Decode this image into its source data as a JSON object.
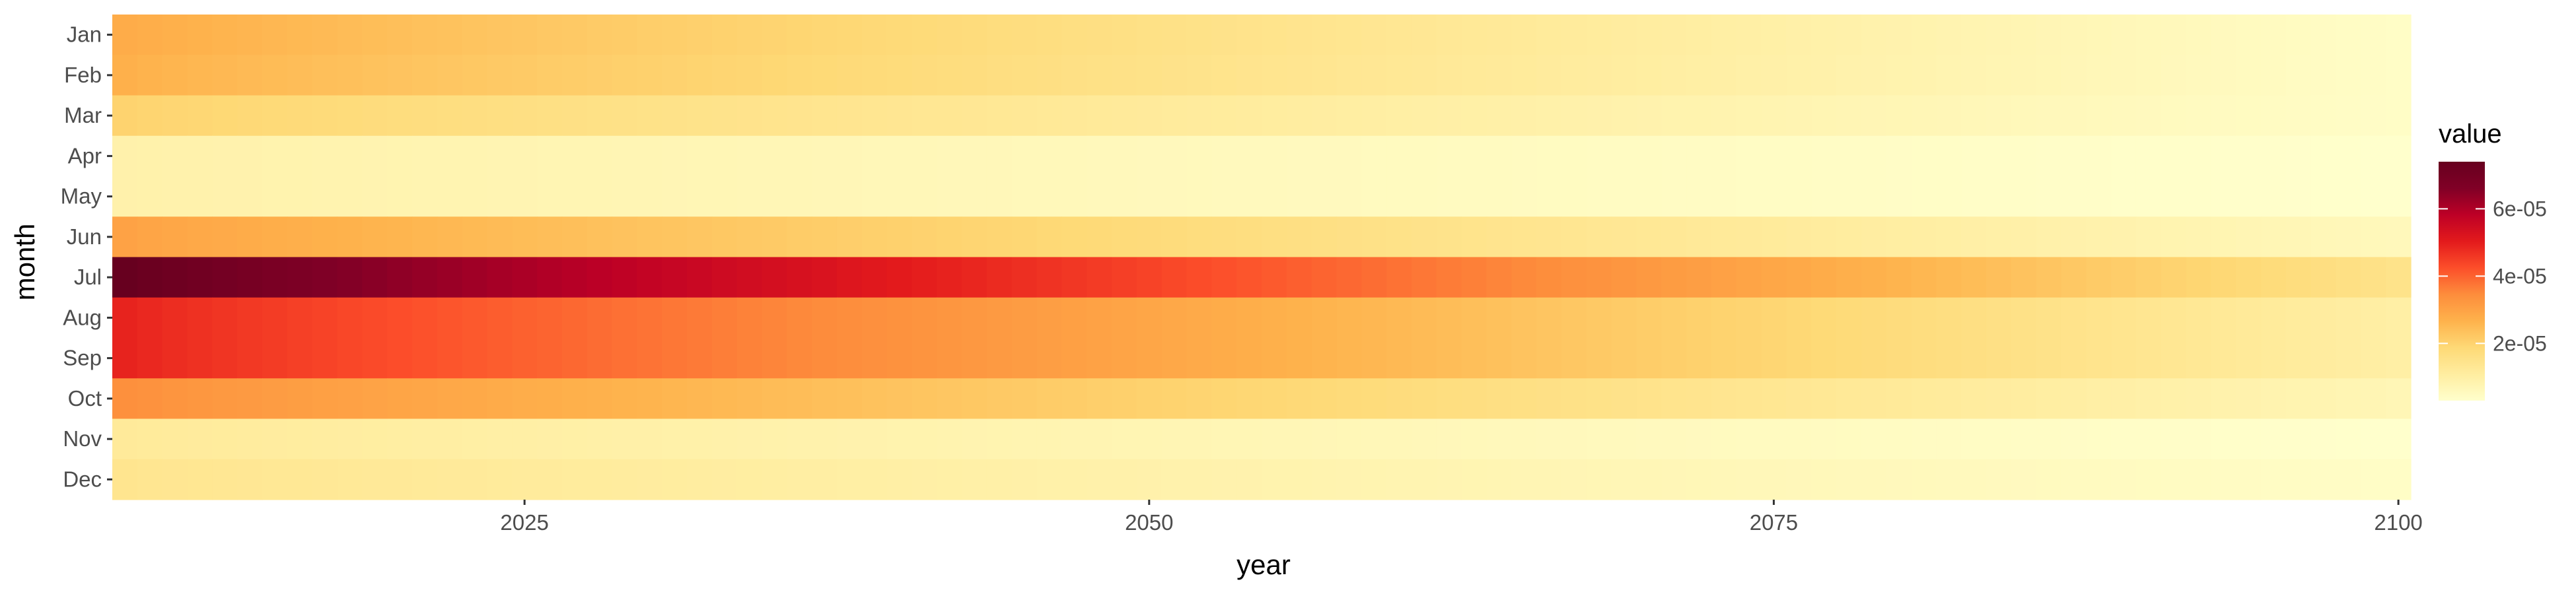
{
  "chart_data": {
    "type": "heatmap",
    "title": "",
    "xlabel": "year",
    "ylabel": "month",
    "x_range": [
      2009,
      2100
    ],
    "x_ticks": [
      2025,
      2050,
      2075,
      2100
    ],
    "y_categories": [
      "Jan",
      "Feb",
      "Mar",
      "Apr",
      "May",
      "Jun",
      "Jul",
      "Aug",
      "Sep",
      "Oct",
      "Nov",
      "Dec"
    ],
    "legend": {
      "title": "value",
      "placement": "right",
      "ticks": [
        2e-05,
        4e-05,
        6e-05
      ],
      "tick_labels": [
        "2e-05",
        "4e-05",
        "6e-05"
      ],
      "min": 3e-06,
      "max": 7.4e-05
    },
    "series": [
      {
        "name": "Jan",
        "start_2009": 2.8e-05,
        "end_2100": 4e-06
      },
      {
        "name": "Feb",
        "start_2009": 2.7e-05,
        "end_2100": 4e-06
      },
      {
        "name": "Mar",
        "start_2009": 2e-05,
        "end_2100": 4e-06
      },
      {
        "name": "Apr",
        "start_2009": 9e-06,
        "end_2100": 3e-06
      },
      {
        "name": "May",
        "start_2009": 9e-06,
        "end_2100": 3e-06
      },
      {
        "name": "Jun",
        "start_2009": 3e-05,
        "end_2100": 6e-06
      },
      {
        "name": "Jul",
        "start_2009": 7.4e-05,
        "end_2100": 1.5e-05
      },
      {
        "name": "Aug",
        "start_2009": 4.9e-05,
        "end_2100": 1e-05
      },
      {
        "name": "Sep",
        "start_2009": 4.9e-05,
        "end_2100": 1e-05
      },
      {
        "name": "Oct",
        "start_2009": 3.4e-05,
        "end_2100": 7e-06
      },
      {
        "name": "Nov",
        "start_2009": 1.2e-05,
        "end_2100": 3e-06
      },
      {
        "name": "Dec",
        "start_2009": 1.4e-05,
        "end_2100": 4e-06
      }
    ],
    "grid": false,
    "colormap": [
      "#ffffcc",
      "#ffeda0",
      "#fed976",
      "#feb24c",
      "#fd8d3c",
      "#fc4e2a",
      "#e31a1c",
      "#bd0026",
      "#800026",
      "#67001f"
    ]
  }
}
